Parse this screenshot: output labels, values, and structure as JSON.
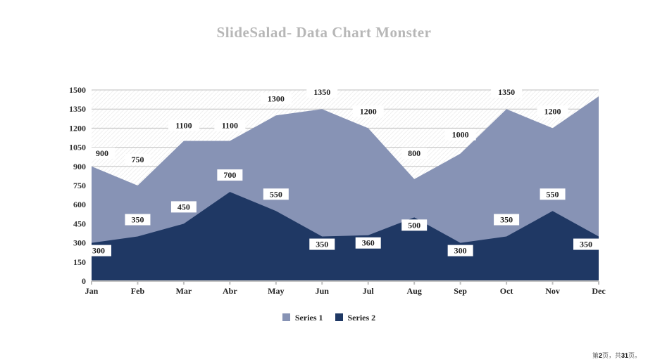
{
  "title": "SlideSalad- Data Chart Monster",
  "chart": {
    "type": "area",
    "background_color": "#ffffff",
    "plot_bg": "#ffffff",
    "grid_color": "#bfbfbf",
    "ylim": [
      0,
      1500
    ],
    "ytick_step": 150,
    "yticks": [
      0,
      150,
      300,
      450,
      600,
      750,
      900,
      1050,
      1200,
      1350,
      1500
    ],
    "categories": [
      "Jan",
      "Feb",
      "Mar",
      "Abr",
      "May",
      "Jun",
      "Jul",
      "Aug",
      "Sep",
      "Oct",
      "Nov",
      "Dec"
    ],
    "categories_start_onaxis": true,
    "series": [
      {
        "name": "Series 1",
        "color": "#8793b5",
        "values": [
          900,
          750,
          1100,
          1100,
          1300,
          1350,
          1200,
          800,
          1000,
          1350,
          1200,
          1450
        ],
        "data_labels": [
          "900",
          "750",
          "1100",
          "1100",
          "1300",
          "1350",
          "1200",
          "800",
          "1000",
          "1350",
          "1200",
          "1450"
        ],
        "label_dy": [
          -15,
          -33,
          -18,
          -18,
          -20,
          -20,
          -20,
          -33,
          -23,
          -20,
          -20,
          -25
        ],
        "label_dx": [
          15,
          0,
          0,
          0,
          0,
          0,
          0,
          0,
          0,
          0,
          0,
          -22
        ]
      },
      {
        "name": "Series 2",
        "color": "#1f3864",
        "values": [
          300,
          350,
          450,
          700,
          550,
          350,
          360,
          500,
          300,
          350,
          550,
          350
        ],
        "data_labels": [
          "300",
          "350",
          "450",
          "700",
          "550",
          "350",
          "360",
          "500",
          "300",
          "350",
          "550",
          "350"
        ],
        "label_dy": [
          15,
          -20,
          -20,
          -20,
          -20,
          15,
          15,
          15,
          15,
          -20,
          -20,
          15
        ],
        "label_dx": [
          10,
          0,
          0,
          0,
          0,
          0,
          0,
          0,
          0,
          0,
          0,
          -18
        ]
      }
    ]
  },
  "legend": {
    "items": [
      {
        "label": "Series 1",
        "color": "#8793b5"
      },
      {
        "label": "Series 2",
        "color": "#1f3864"
      }
    ]
  },
  "pager": {
    "prefix": "第",
    "current": "2",
    "mid": "页，共",
    "total": "31",
    "suffix": "页。"
  }
}
